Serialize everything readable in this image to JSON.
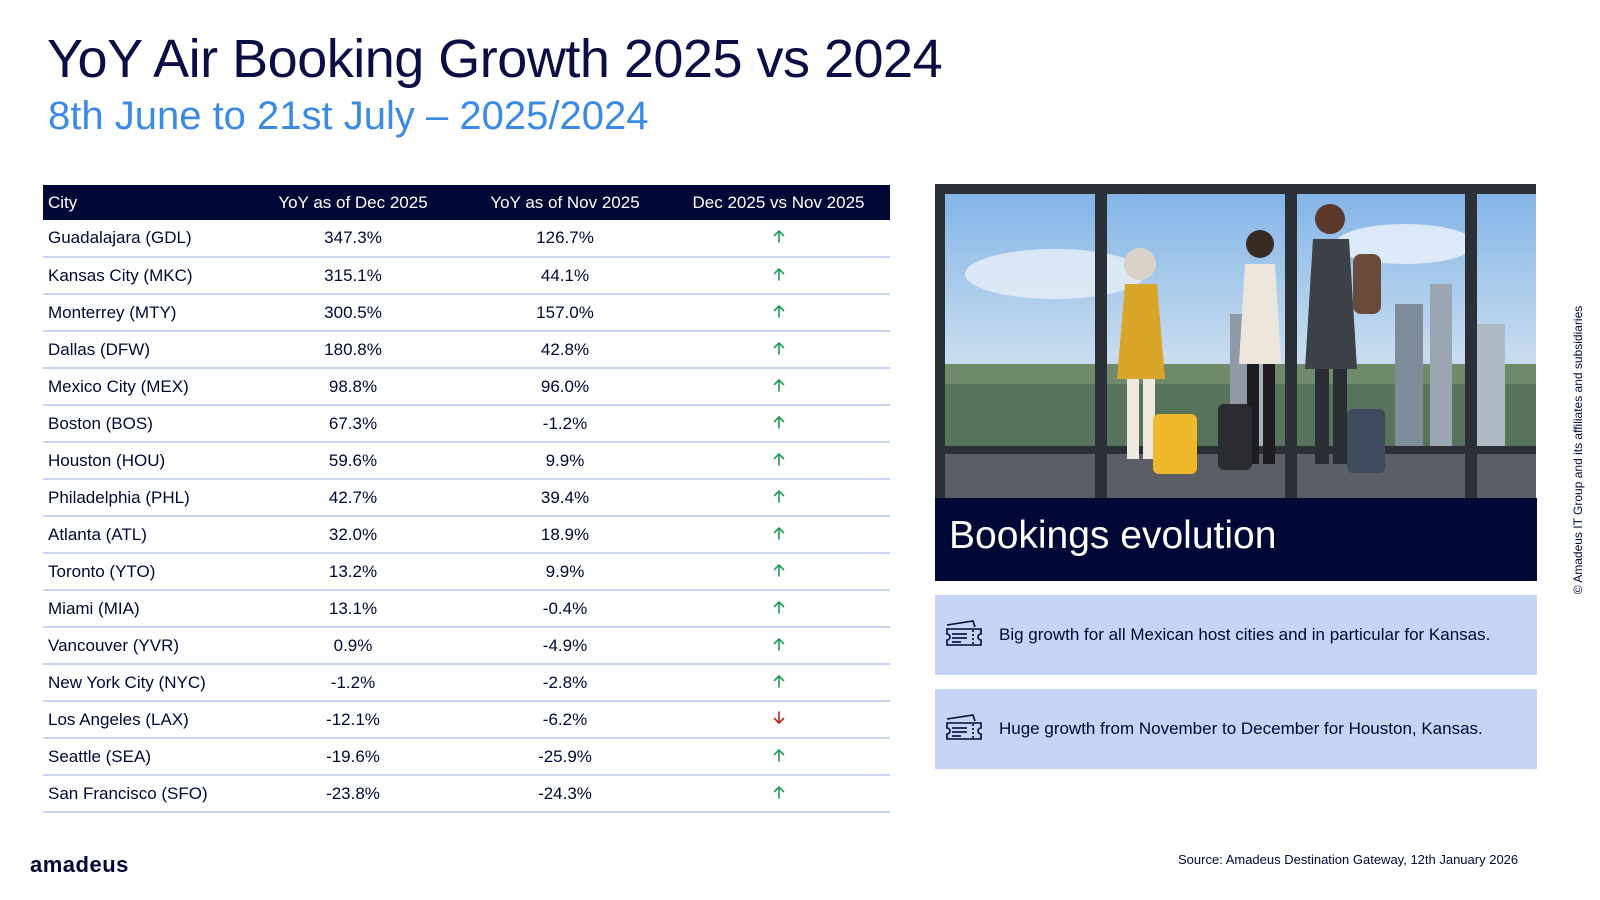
{
  "title": "YoY Air Booking Growth 2025 vs 2024",
  "subtitle": "8th June to 21st July – 2025/2024",
  "table": {
    "headers": [
      "City",
      "YoY as of Dec 2025",
      "YoY as of Nov 2025",
      "Dec 2025 vs Nov 2025"
    ],
    "rows": [
      {
        "city": "Guadalajara (GDL)",
        "dec": "347.3%",
        "nov": "126.7%",
        "trend": "up"
      },
      {
        "city": "Kansas City (MKC)",
        "dec": "315.1%",
        "nov": "44.1%",
        "trend": "up"
      },
      {
        "city": "Monterrey (MTY)",
        "dec": "300.5%",
        "nov": "157.0%",
        "trend": "up"
      },
      {
        "city": "Dallas (DFW)",
        "dec": "180.8%",
        "nov": "42.8%",
        "trend": "up"
      },
      {
        "city": "Mexico City (MEX)",
        "dec": "98.8%",
        "nov": "96.0%",
        "trend": "up"
      },
      {
        "city": "Boston (BOS)",
        "dec": "67.3%",
        "nov": "-1.2%",
        "trend": "up"
      },
      {
        "city": "Houston (HOU)",
        "dec": "59.6%",
        "nov": "9.9%",
        "trend": "up"
      },
      {
        "city": "Philadelphia (PHL)",
        "dec": "42.7%",
        "nov": "39.4%",
        "trend": "up"
      },
      {
        "city": "Atlanta (ATL)",
        "dec": "32.0%",
        "nov": "18.9%",
        "trend": "up"
      },
      {
        "city": "Toronto (YTO)",
        "dec": "13.2%",
        "nov": "9.9%",
        "trend": "up"
      },
      {
        "city": "Miami (MIA)",
        "dec": "13.1%",
        "nov": "-0.4%",
        "trend": "up"
      },
      {
        "city": "Vancouver (YVR)",
        "dec": "0.9%",
        "nov": "-4.9%",
        "trend": "up"
      },
      {
        "city": "New York City (NYC)",
        "dec": "-1.2%",
        "nov": "-2.8%",
        "trend": "up"
      },
      {
        "city": "Los Angeles (LAX)",
        "dec": "-12.1%",
        "nov": "-6.2%",
        "trend": "down"
      },
      {
        "city": "Seattle (SEA)",
        "dec": "-19.6%",
        "nov": "-25.9%",
        "trend": "up"
      },
      {
        "city": "San Francisco (SFO)",
        "dec": "-23.8%",
        "nov": "-24.3%",
        "trend": "up"
      }
    ]
  },
  "colors": {
    "up": "#1f9d55",
    "down": "#b3261e",
    "navy": "#000835",
    "accent": "#3b8ae6",
    "panel": "#c6d4f5"
  },
  "panel": {
    "heading": "Bookings evolution",
    "notes": [
      {
        "icon": "ticket-icon",
        "text": "Big growth for all Mexican host cities and in particular for Kansas."
      },
      {
        "icon": "ticket-icon",
        "text": "Huge growth from November to December for Houston, Kansas."
      }
    ]
  },
  "footer": {
    "logo": "amadeus",
    "source": "Source: Amadeus Destination Gateway, 12th January 2026",
    "copyright": "© Amadeus IT Group and its affiliates and subsidiaries"
  }
}
